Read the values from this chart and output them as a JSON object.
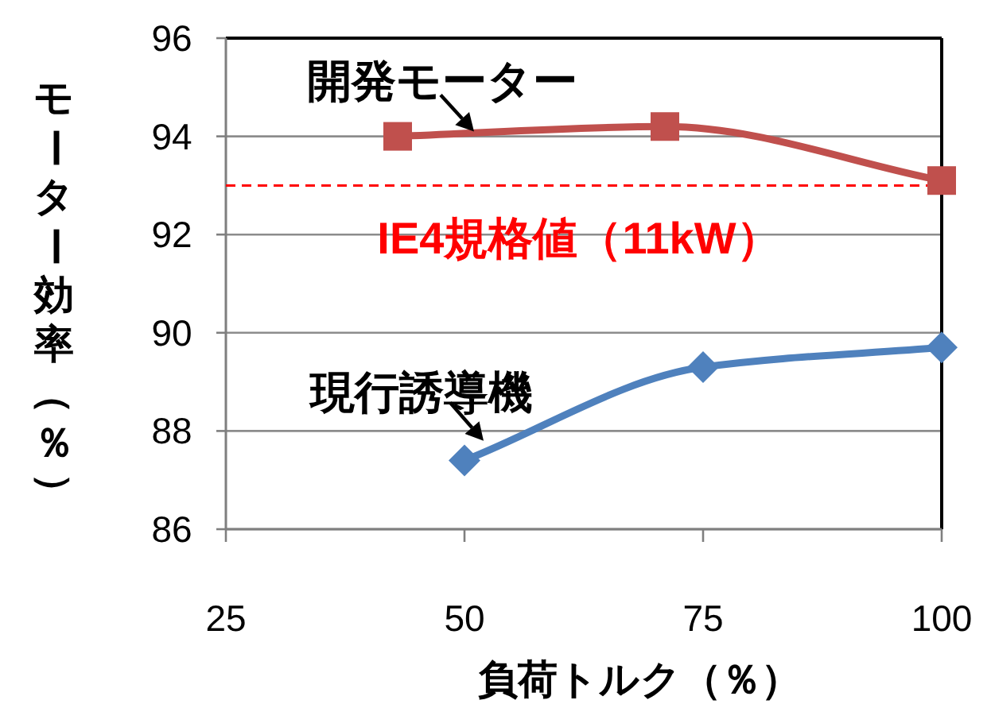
{
  "chart_data": {
    "type": "line",
    "xlabel": "負荷トルク（％）",
    "ylabel": "モーター効率（％）",
    "xlim": [
      25,
      100
    ],
    "xticks": [
      25,
      50,
      75,
      100
    ],
    "ylim": [
      86,
      96
    ],
    "yticks": [
      86,
      88,
      90,
      92,
      94,
      96
    ],
    "grid": "y",
    "series": [
      {
        "color": "#c0504d",
        "marker": "square",
        "x": [
          43,
          71,
          100
        ],
        "values": [
          94.0,
          94.2,
          93.1
        ]
      },
      {
        "color": "#4f81bd",
        "marker": "diamond",
        "x": [
          50,
          75,
          100
        ],
        "values": [
          87.4,
          89.3,
          89.7
        ]
      }
    ],
    "ref_lines": [
      {
        "axis": "y",
        "value": 93,
        "label": "IE4規格値（11kW）",
        "color": "#ff0000",
        "line_style": "dashed"
      }
    ],
    "annotations": [
      {
        "text": "開発モーター",
        "x": 51,
        "y": 94.1
      },
      {
        "text": "現行誘導機",
        "x": 52,
        "y": 87.8
      }
    ]
  }
}
